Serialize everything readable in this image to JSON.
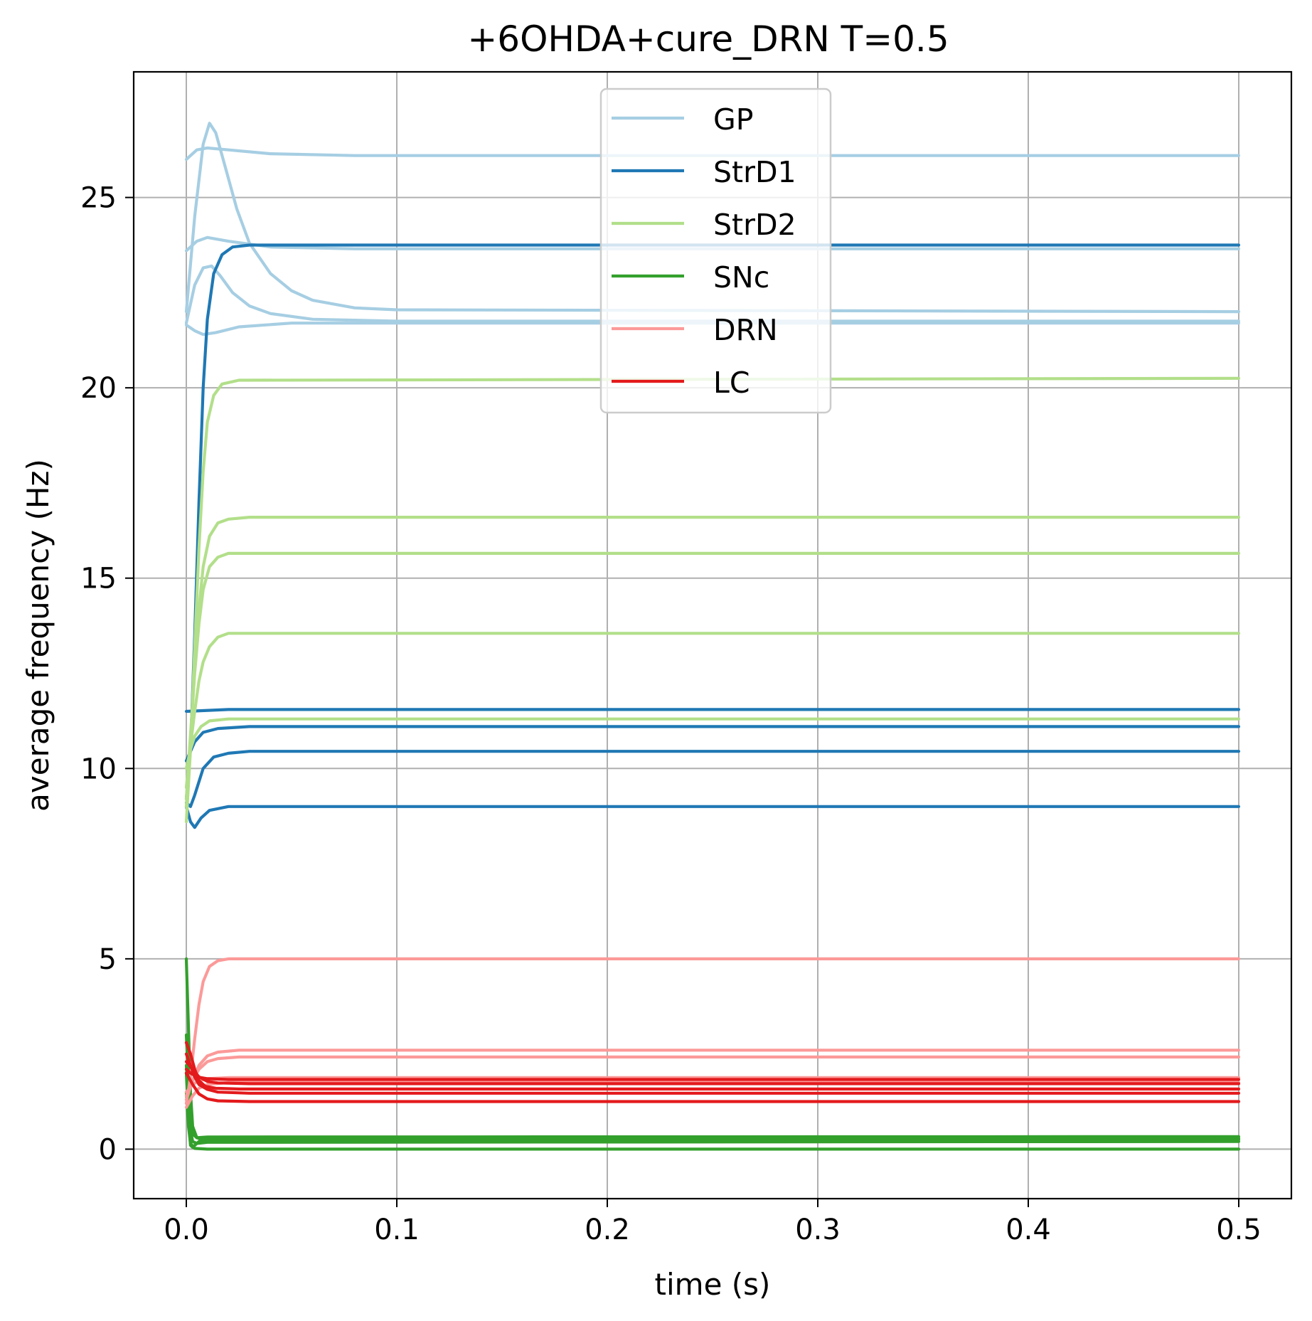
{
  "chart_data": {
    "type": "line",
    "title": "+6OHDA+cure_DRN T=0.5",
    "xlabel": "time (s)",
    "ylabel": "average frequency (Hz)",
    "xlim": [
      -0.025,
      0.525
    ],
    "ylim": [
      -1.3,
      28.3
    ],
    "grid": true,
    "legend_position": "top-center",
    "xticks": [
      0.0,
      0.1,
      0.2,
      0.3,
      0.4,
      0.5
    ],
    "xtick_labels": [
      "0.0",
      "0.1",
      "0.2",
      "0.3",
      "0.4",
      "0.5"
    ],
    "yticks": [
      0,
      5,
      10,
      15,
      20,
      25
    ],
    "ytick_labels": [
      "0",
      "5",
      "10",
      "15",
      "20",
      "25"
    ],
    "series": [
      {
        "name": "GP",
        "color": "#a6cee3",
        "lines": [
          [
            [
              0,
              26.0
            ],
            [
              0.005,
              26.25
            ],
            [
              0.01,
              26.3
            ],
            [
              0.02,
              26.25
            ],
            [
              0.04,
              26.15
            ],
            [
              0.08,
              26.1
            ],
            [
              0.5,
              26.1
            ]
          ],
          [
            [
              0,
              22.0
            ],
            [
              0.004,
              24.5
            ],
            [
              0.008,
              26.4
            ],
            [
              0.011,
              26.95
            ],
            [
              0.014,
              26.7
            ],
            [
              0.018,
              25.9
            ],
            [
              0.024,
              24.7
            ],
            [
              0.03,
              23.8
            ],
            [
              0.04,
              23.0
            ],
            [
              0.05,
              22.55
            ],
            [
              0.06,
              22.3
            ],
            [
              0.08,
              22.1
            ],
            [
              0.1,
              22.05
            ],
            [
              0.5,
              22.0
            ]
          ],
          [
            [
              0,
              23.6
            ],
            [
              0.005,
              23.85
            ],
            [
              0.01,
              23.95
            ],
            [
              0.02,
              23.85
            ],
            [
              0.04,
              23.7
            ],
            [
              0.08,
              23.65
            ],
            [
              0.5,
              23.65
            ]
          ],
          [
            [
              0,
              21.7
            ],
            [
              0.004,
              22.7
            ],
            [
              0.008,
              23.15
            ],
            [
              0.012,
              23.2
            ],
            [
              0.016,
              22.95
            ],
            [
              0.022,
              22.5
            ],
            [
              0.03,
              22.15
            ],
            [
              0.04,
              21.95
            ],
            [
              0.06,
              21.8
            ],
            [
              0.1,
              21.75
            ],
            [
              0.5,
              21.75
            ]
          ],
          [
            [
              0,
              21.65
            ],
            [
              0.004,
              21.5
            ],
            [
              0.008,
              21.4
            ],
            [
              0.014,
              21.45
            ],
            [
              0.025,
              21.6
            ],
            [
              0.05,
              21.7
            ],
            [
              0.5,
              21.7
            ]
          ]
        ]
      },
      {
        "name": "StrD1",
        "color": "#1f78b4",
        "lines": [
          [
            [
              0,
              9.2
            ],
            [
              0.002,
              10.5
            ],
            [
              0.004,
              13.5
            ],
            [
              0.006,
              17.0
            ],
            [
              0.008,
              20.0
            ],
            [
              0.01,
              21.8
            ],
            [
              0.013,
              23.0
            ],
            [
              0.017,
              23.5
            ],
            [
              0.022,
              23.7
            ],
            [
              0.03,
              23.75
            ],
            [
              0.5,
              23.75
            ]
          ],
          [
            [
              0,
              11.5
            ],
            [
              0.02,
              11.55
            ],
            [
              0.5,
              11.55
            ]
          ],
          [
            [
              0,
              10.2
            ],
            [
              0.004,
              10.7
            ],
            [
              0.008,
              10.95
            ],
            [
              0.015,
              11.05
            ],
            [
              0.03,
              11.1
            ],
            [
              0.5,
              11.1
            ]
          ],
          [
            [
              0,
              9.1
            ],
            [
              0.002,
              9.0
            ],
            [
              0.004,
              9.3
            ],
            [
              0.008,
              10.0
            ],
            [
              0.013,
              10.3
            ],
            [
              0.02,
              10.4
            ],
            [
              0.03,
              10.45
            ],
            [
              0.5,
              10.45
            ]
          ],
          [
            [
              0,
              9.0
            ],
            [
              0.002,
              8.6
            ],
            [
              0.004,
              8.45
            ],
            [
              0.007,
              8.7
            ],
            [
              0.011,
              8.9
            ],
            [
              0.02,
              9.0
            ],
            [
              0.5,
              9.0
            ]
          ]
        ]
      },
      {
        "name": "StrD2",
        "color": "#b2df8a",
        "lines": [
          [
            [
              0,
              8.6
            ],
            [
              0.002,
              10.5
            ],
            [
              0.004,
              13.2
            ],
            [
              0.006,
              15.8
            ],
            [
              0.008,
              17.8
            ],
            [
              0.01,
              19.1
            ],
            [
              0.013,
              19.8
            ],
            [
              0.017,
              20.1
            ],
            [
              0.025,
              20.2
            ],
            [
              0.5,
              20.25
            ]
          ],
          [
            [
              0,
              9.0
            ],
            [
              0.002,
              10.8
            ],
            [
              0.004,
              12.6
            ],
            [
              0.006,
              14.2
            ],
            [
              0.008,
              15.3
            ],
            [
              0.011,
              16.1
            ],
            [
              0.015,
              16.45
            ],
            [
              0.02,
              16.55
            ],
            [
              0.03,
              16.6
            ],
            [
              0.5,
              16.6
            ]
          ],
          [
            [
              0,
              9.2
            ],
            [
              0.002,
              10.9
            ],
            [
              0.004,
              12.5
            ],
            [
              0.006,
              13.8
            ],
            [
              0.008,
              14.7
            ],
            [
              0.011,
              15.3
            ],
            [
              0.015,
              15.55
            ],
            [
              0.02,
              15.65
            ],
            [
              0.5,
              15.65
            ]
          ],
          [
            [
              0,
              9.5
            ],
            [
              0.002,
              10.6
            ],
            [
              0.004,
              11.5
            ],
            [
              0.006,
              12.3
            ],
            [
              0.008,
              12.8
            ],
            [
              0.011,
              13.2
            ],
            [
              0.015,
              13.45
            ],
            [
              0.02,
              13.55
            ],
            [
              0.5,
              13.55
            ]
          ],
          [
            [
              0,
              10.0
            ],
            [
              0.002,
              10.5
            ],
            [
              0.004,
              10.85
            ],
            [
              0.007,
              11.1
            ],
            [
              0.011,
              11.25
            ],
            [
              0.02,
              11.3
            ],
            [
              0.5,
              11.3
            ]
          ]
        ]
      },
      {
        "name": "SNc",
        "color": "#33a02c",
        "lines": [
          [
            [
              0,
              5.0
            ],
            [
              0.001,
              3.2
            ],
            [
              0.002,
              1.5
            ],
            [
              0.003,
              0.6
            ],
            [
              0.005,
              0.3
            ],
            [
              0.008,
              0.25
            ],
            [
              0.02,
              0.25
            ],
            [
              0.5,
              0.25
            ]
          ],
          [
            [
              0,
              3.0
            ],
            [
              0.001,
              1.8
            ],
            [
              0.002,
              0.8
            ],
            [
              0.003,
              0.4
            ],
            [
              0.005,
              0.3
            ],
            [
              0.01,
              0.32
            ],
            [
              0.5,
              0.33
            ]
          ],
          [
            [
              0,
              2.2
            ],
            [
              0.001,
              1.2
            ],
            [
              0.002,
              0.5
            ],
            [
              0.003,
              0.2
            ],
            [
              0.005,
              0.15
            ],
            [
              0.01,
              0.18
            ],
            [
              0.5,
              0.2
            ]
          ],
          [
            [
              0,
              2.0
            ],
            [
              0.001,
              0.8
            ],
            [
              0.002,
              0.1
            ],
            [
              0.003,
              0.05
            ],
            [
              0.006,
              0.2
            ],
            [
              0.01,
              0.25
            ],
            [
              0.5,
              0.28
            ]
          ],
          [
            [
              0,
              1.5
            ],
            [
              0.001,
              0.6
            ],
            [
              0.002,
              0.15
            ],
            [
              0.004,
              0.02
            ],
            [
              0.01,
              0.0
            ],
            [
              0.5,
              0.0
            ]
          ]
        ]
      },
      {
        "name": "DRN",
        "color": "#fb9a99",
        "lines": [
          [
            [
              0,
              1.2
            ],
            [
              0.002,
              1.9
            ],
            [
              0.004,
              2.9
            ],
            [
              0.006,
              3.8
            ],
            [
              0.008,
              4.4
            ],
            [
              0.011,
              4.8
            ],
            [
              0.015,
              4.95
            ],
            [
              0.02,
              5.0
            ],
            [
              0.5,
              5.0
            ]
          ],
          [
            [
              0,
              1.3
            ],
            [
              0.003,
              1.8
            ],
            [
              0.006,
              2.2
            ],
            [
              0.01,
              2.45
            ],
            [
              0.015,
              2.55
            ],
            [
              0.025,
              2.6
            ],
            [
              0.5,
              2.6
            ]
          ],
          [
            [
              0,
              1.4
            ],
            [
              0.003,
              1.8
            ],
            [
              0.006,
              2.1
            ],
            [
              0.01,
              2.3
            ],
            [
              0.015,
              2.38
            ],
            [
              0.025,
              2.42
            ],
            [
              0.5,
              2.42
            ]
          ],
          [
            [
              0,
              1.5
            ],
            [
              0.003,
              1.7
            ],
            [
              0.006,
              1.8
            ],
            [
              0.01,
              1.85
            ],
            [
              0.02,
              1.88
            ],
            [
              0.5,
              1.88
            ]
          ],
          [
            [
              0,
              1.1
            ],
            [
              0.003,
              1.4
            ],
            [
              0.006,
              1.6
            ],
            [
              0.01,
              1.7
            ],
            [
              0.02,
              1.75
            ],
            [
              0.5,
              1.75
            ]
          ]
        ]
      },
      {
        "name": "LC",
        "color": "#e31a1c",
        "lines": [
          [
            [
              0,
              2.8
            ],
            [
              0.002,
              2.5
            ],
            [
              0.004,
              2.1
            ],
            [
              0.006,
              1.8
            ],
            [
              0.009,
              1.65
            ],
            [
              0.014,
              1.6
            ],
            [
              0.025,
              1.58
            ],
            [
              0.5,
              1.58
            ]
          ],
          [
            [
              0,
              2.5
            ],
            [
              0.002,
              2.2
            ],
            [
              0.004,
              1.9
            ],
            [
              0.006,
              1.7
            ],
            [
              0.01,
              1.57
            ],
            [
              0.015,
              1.5
            ],
            [
              0.03,
              1.47
            ],
            [
              0.5,
              1.47
            ]
          ],
          [
            [
              0,
              2.3
            ],
            [
              0.003,
              2.1
            ],
            [
              0.006,
              1.9
            ],
            [
              0.01,
              1.78
            ],
            [
              0.015,
              1.74
            ],
            [
              0.03,
              1.72
            ],
            [
              0.5,
              1.72
            ]
          ],
          [
            [
              0,
              2.0
            ],
            [
              0.003,
              1.7
            ],
            [
              0.006,
              1.45
            ],
            [
              0.01,
              1.32
            ],
            [
              0.015,
              1.27
            ],
            [
              0.03,
              1.25
            ],
            [
              0.5,
              1.25
            ]
          ],
          [
            [
              0,
              2.1
            ],
            [
              0.002,
              2.0
            ],
            [
              0.005,
              1.9
            ],
            [
              0.01,
              1.85
            ],
            [
              0.02,
              1.83
            ],
            [
              0.5,
              1.83
            ]
          ]
        ]
      }
    ]
  }
}
